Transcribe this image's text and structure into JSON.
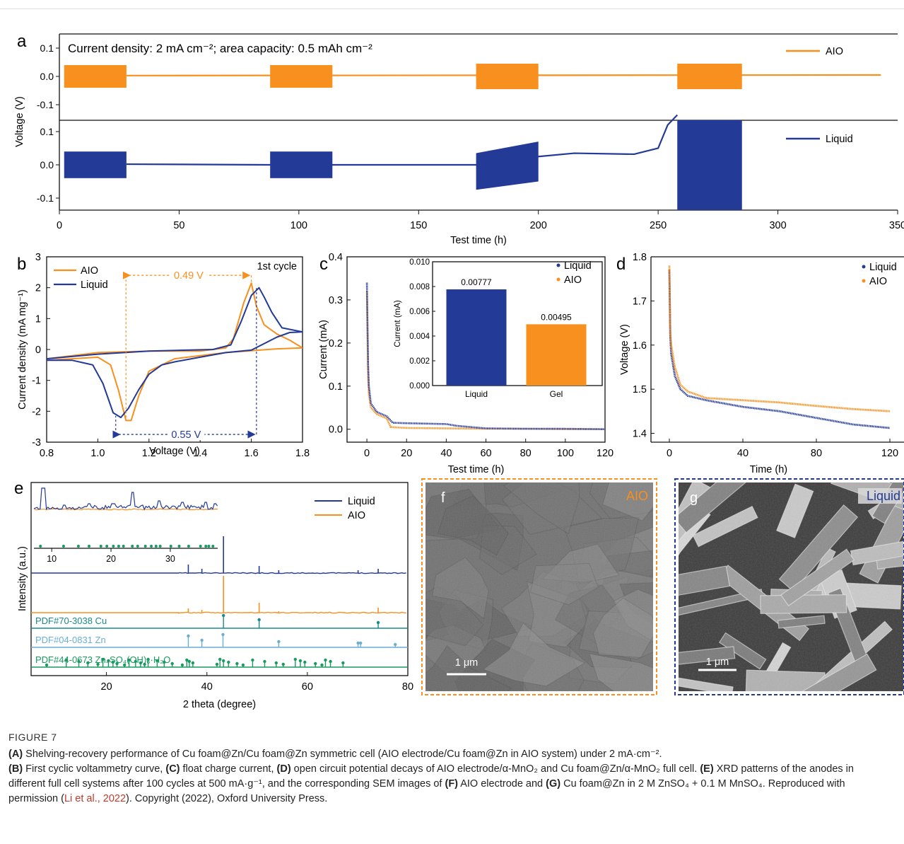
{
  "figure": {
    "panel_labels": [
      "a",
      "b",
      "c",
      "d",
      "e",
      "f",
      "g"
    ],
    "caption": {
      "title": "FIGURE 7",
      "segments": [
        {
          "bold": "(A)",
          "text": " Shelving-recovery performance of Cu foam@Zn/Cu foam@Zn symmetric cell (AIO electrode/Cu foam@Zn in AIO system) under 2 mA·cm⁻²."
        },
        {
          "bold": "(B)",
          "text": " First cyclic voltammetry curve, "
        },
        {
          "bold": "(C)",
          "text": " float charge current, "
        },
        {
          "bold": "(D)",
          "text": " open circuit potential decays of AIO electrode/α-MnO₂ and Cu foam@Zn/α-MnO₂ full cell. "
        },
        {
          "bold": "(E)",
          "text": " XRD patterns of the anodes in different full cell systems after 100 cycles at 500 mA·g⁻¹, and the corresponding SEM images of "
        },
        {
          "bold": "(F)",
          "text": " AIO electrode and "
        },
        {
          "bold": "(G)",
          "text": " Cu foam@Zn in 2 M ZnSO₄ + 0.1 M MnSO₄. Reproduced with permission ("
        }
      ],
      "ref": "Li et al., 2022",
      "tail": "). Copyright (2022), Oxford University Press."
    }
  },
  "colors": {
    "aio": "#f7901e",
    "liquid": "#233a96",
    "pdf_cu": "#1a8a8a",
    "pdf_zn": "#6aaed6",
    "pdf_zso": "#1a9a60"
  },
  "chart_data": [
    {
      "panel": "a",
      "type": "line",
      "annotation": "Current density: 2 mA cm⁻²; area capacity: 0.5 mAh cm⁻²",
      "xlabel": "Test time (h)",
      "ylabel": "Voltage (V)",
      "xlim": [
        0,
        350
      ],
      "xticks": [
        "0",
        "50",
        "100",
        "150",
        "200",
        "250",
        "300",
        "350"
      ],
      "ylim": [
        -0.15,
        0.15
      ],
      "yticks": [
        "-0.1",
        "0.0",
        "0.1"
      ],
      "series": [
        {
          "name": "AIO",
          "cycling_windows_h": [
            [
              2,
              28
            ],
            [
              88,
              114
            ],
            [
              174,
              200
            ],
            [
              258,
              285
            ]
          ],
          "amplitude_V": [
            0.04,
            0.04,
            0.045,
            0.045
          ],
          "rest_V": 0.005
        },
        {
          "name": "Liquid",
          "cycling_windows_h": [
            [
              2,
              28
            ],
            [
              88,
              114
            ],
            [
              174,
              200
            ],
            [
              258,
              285
            ]
          ],
          "amplitude_V": [
            0.04,
            0.04,
            0.07,
            0.15
          ],
          "rest_points": [
            [
              28,
              0.002
            ],
            [
              88,
              0.0
            ],
            [
              114,
              0.0
            ],
            [
              174,
              0.0
            ],
            [
              200,
              0.025
            ],
            [
              215,
              0.035
            ],
            [
              240,
              0.032
            ],
            [
              250,
              0.05
            ],
            [
              254,
              0.12
            ],
            [
              258,
              0.15
            ]
          ]
        }
      ]
    },
    {
      "panel": "b",
      "type": "line",
      "annotation": "1st cycle",
      "xlabel": "Voltage (V)",
      "ylabel": "Current density (mA mg⁻¹)",
      "xlim": [
        0.8,
        1.8
      ],
      "xticks": [
        "0.8",
        "1.0",
        "1.2",
        "1.4",
        "1.6",
        "1.8"
      ],
      "ylim": [
        -3,
        3
      ],
      "yticks": [
        "-3",
        "-2",
        "-1",
        "0",
        "1",
        "2",
        "3"
      ],
      "arrows": [
        {
          "label": "0.49 V",
          "from_x": 1.11,
          "to_x": 1.6,
          "y": 2.4
        },
        {
          "label": "0.55 V",
          "from_x": 1.07,
          "to_x": 1.62,
          "y": -2.75
        }
      ],
      "series": [
        {
          "name": "AIO",
          "points": [
            [
              0.8,
              -0.35
            ],
            [
              0.9,
              -0.3
            ],
            [
              1.0,
              -0.25
            ],
            [
              1.05,
              -0.5
            ],
            [
              1.08,
              -1.3
            ],
            [
              1.11,
              -2.3
            ],
            [
              1.13,
              -2.3
            ],
            [
              1.16,
              -1.5
            ],
            [
              1.2,
              -0.7
            ],
            [
              1.3,
              -0.3
            ],
            [
              1.4,
              -0.2
            ],
            [
              1.5,
              -0.1
            ],
            [
              1.6,
              -0.04
            ],
            [
              1.7,
              0.02
            ],
            [
              1.8,
              0.05
            ],
            [
              1.75,
              0.3
            ],
            [
              1.7,
              0.5
            ],
            [
              1.65,
              0.8
            ],
            [
              1.62,
              1.4
            ],
            [
              1.6,
              2.15
            ],
            [
              1.57,
              1.5
            ],
            [
              1.53,
              0.35
            ],
            [
              1.5,
              0.05
            ],
            [
              1.4,
              -0.05
            ],
            [
              1.2,
              -0.05
            ],
            [
              1.0,
              -0.1
            ],
            [
              0.8,
              -0.3
            ]
          ]
        },
        {
          "name": "Liquid",
          "points": [
            [
              0.8,
              -0.35
            ],
            [
              0.9,
              -0.35
            ],
            [
              0.98,
              -0.5
            ],
            [
              1.02,
              -1.1
            ],
            [
              1.06,
              -2.05
            ],
            [
              1.09,
              -2.2
            ],
            [
              1.12,
              -1.9
            ],
            [
              1.16,
              -1.3
            ],
            [
              1.2,
              -0.8
            ],
            [
              1.25,
              -0.5
            ],
            [
              1.3,
              -0.4
            ],
            [
              1.4,
              -0.25
            ],
            [
              1.5,
              -0.1
            ],
            [
              1.6,
              -0.02
            ],
            [
              1.7,
              0.4
            ],
            [
              1.75,
              0.55
            ],
            [
              1.8,
              0.57
            ],
            [
              1.72,
              0.7
            ],
            [
              1.68,
              1.2
            ],
            [
              1.65,
              1.7
            ],
            [
              1.63,
              2.0
            ],
            [
              1.6,
              1.75
            ],
            [
              1.56,
              0.9
            ],
            [
              1.52,
              0.15
            ],
            [
              1.45,
              0.0
            ],
            [
              1.2,
              -0.05
            ],
            [
              1.0,
              -0.15
            ],
            [
              0.8,
              -0.3
            ]
          ]
        }
      ]
    },
    {
      "panel": "c",
      "type": "scatter",
      "xlabel": "Test time (h)",
      "ylabel": "Current (mA)",
      "xlim": [
        -10,
        120
      ],
      "xticks": [
        "0",
        "20",
        "40",
        "60",
        "80",
        "100",
        "120"
      ],
      "ylim": [
        -0.03,
        0.4
      ],
      "yticks": [
        "0.0",
        "0.1",
        "0.2",
        "0.3",
        "0.4"
      ],
      "series": [
        {
          "name": "Liquid",
          "points": [
            [
              0,
              0.34
            ],
            [
              0.3,
              0.25
            ],
            [
              0.6,
              0.15
            ],
            [
              1,
              0.1
            ],
            [
              2,
              0.06
            ],
            [
              5,
              0.04
            ],
            [
              10,
              0.03
            ],
            [
              13,
              0.015
            ],
            [
              20,
              0.014
            ],
            [
              30,
              0.013
            ],
            [
              40,
              0.012
            ],
            [
              45,
              0.008
            ],
            [
              55,
              0.004
            ],
            [
              60,
              0.002
            ],
            [
              80,
              0.001
            ],
            [
              100,
              0.001
            ],
            [
              120,
              0.0
            ]
          ]
        },
        {
          "name": "AIO",
          "points": [
            [
              0,
              0.32
            ],
            [
              0.3,
              0.22
            ],
            [
              0.6,
              0.12
            ],
            [
              1,
              0.08
            ],
            [
              2,
              0.05
            ],
            [
              5,
              0.035
            ],
            [
              10,
              0.025
            ],
            [
              12,
              0.005
            ],
            [
              20,
              0.003
            ],
            [
              40,
              0.002
            ],
            [
              60,
              0.001
            ],
            [
              80,
              0.001
            ],
            [
              100,
              0.0
            ],
            [
              120,
              0.0
            ]
          ]
        }
      ],
      "inset": {
        "type": "bar",
        "ylabel": "Current (mA)",
        "ylim": [
          0,
          0.01
        ],
        "yticks": [
          "0.000",
          "0.002",
          "0.004",
          "0.006",
          "0.008",
          "0.010"
        ],
        "categories": [
          "Liquid",
          "Gel"
        ],
        "values": [
          0.00777,
          0.00495
        ],
        "labels": [
          "0.00777",
          "0.00495"
        ]
      }
    },
    {
      "panel": "d",
      "type": "scatter",
      "xlabel": "Time (h)",
      "ylabel": "Voltage (V)",
      "xlim": [
        -10,
        120
      ],
      "xticks": [
        "0",
        "40",
        "80",
        "120"
      ],
      "ylim": [
        1.38,
        1.8
      ],
      "yticks": [
        "1.4",
        "1.5",
        "1.6",
        "1.7",
        "1.8"
      ],
      "series": [
        {
          "name": "Liquid",
          "points": [
            [
              0,
              1.77
            ],
            [
              0.5,
              1.62
            ],
            [
              1,
              1.58
            ],
            [
              3,
              1.53
            ],
            [
              6,
              1.5
            ],
            [
              10,
              1.485
            ],
            [
              20,
              1.475
            ],
            [
              40,
              1.46
            ],
            [
              60,
              1.45
            ],
            [
              80,
              1.435
            ],
            [
              100,
              1.42
            ],
            [
              120,
              1.412
            ]
          ]
        },
        {
          "name": "AIO",
          "points": [
            [
              0,
              1.78
            ],
            [
              0.5,
              1.63
            ],
            [
              1,
              1.6
            ],
            [
              3,
              1.55
            ],
            [
              6,
              1.51
            ],
            [
              10,
              1.495
            ],
            [
              20,
              1.48
            ],
            [
              40,
              1.475
            ],
            [
              60,
              1.47
            ],
            [
              80,
              1.462
            ],
            [
              100,
              1.455
            ],
            [
              120,
              1.45
            ]
          ]
        }
      ]
    },
    {
      "panel": "e",
      "type": "line",
      "xlabel": "2 theta (degree)",
      "ylabel": "Intensity (a.u.)",
      "xlim": [
        5,
        80
      ],
      "xticks": [
        "20",
        "40",
        "60",
        "80"
      ],
      "legend": [
        "Liquid",
        "AIO"
      ],
      "inset_xticks": [
        "10",
        "20",
        "30"
      ],
      "references": [
        {
          "name": "PDF#70-3038 Cu",
          "peaks": [
            43.3,
            50.4,
            74.1
          ]
        },
        {
          "name": "PDF#04-0831 Zn",
          "peaks": [
            36.3,
            39.0,
            43.2,
            54.3,
            70.1,
            70.6,
            77.5
          ]
        },
        {
          "name": "PDF#44-0673 Zn₄SO₄(OH)₆·H₂O",
          "peaks": [
            8.1,
            12.0,
            14.5,
            16.3,
            18.3,
            19.3,
            20.4,
            21.3,
            22.1,
            23.6,
            24.5,
            25.8,
            26.8,
            27.6,
            28.3,
            30.1,
            31.5,
            33.1,
            35.1,
            36.0,
            36.5,
            37.2,
            42.0,
            42.6,
            43.3,
            44.3,
            46.0,
            47.2,
            49.1,
            51.5,
            53.8,
            55.2,
            57.6,
            58.6,
            59.5,
            61.6,
            62.9,
            63.6,
            64.6,
            67.1
          ]
        }
      ]
    }
  ],
  "sem": [
    {
      "panel": "f",
      "label": "AIO",
      "scalebar": "1 μm"
    },
    {
      "panel": "g",
      "label": "Liquid",
      "scalebar": "1 μm"
    }
  ]
}
